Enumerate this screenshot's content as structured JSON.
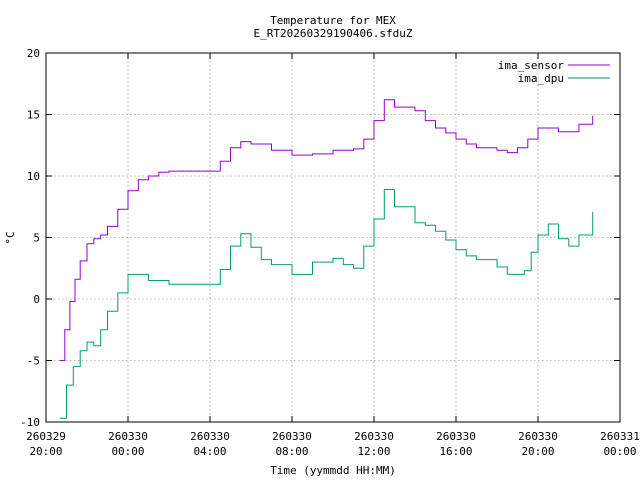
{
  "chart_data": {
    "type": "line",
    "title": "Temperature for MEX",
    "subtitle": "E_RT20260329190406.sfduZ",
    "xlabel": "Time (yymmdd HH:MM)",
    "ylabel": "°C",
    "ylim": [
      -10,
      20
    ],
    "yticks": [
      "-10",
      "-5",
      "0",
      "5",
      "10",
      "15",
      "20"
    ],
    "xlim": [
      "2026-03-29 20:00",
      "2026-03-31 00:00"
    ],
    "xticks": [
      {
        "date": "260329",
        "time": "20:00"
      },
      {
        "date": "260330",
        "time": "00:00"
      },
      {
        "date": "260330",
        "time": "04:00"
      },
      {
        "date": "260330",
        "time": "08:00"
      },
      {
        "date": "260330",
        "time": "12:00"
      },
      {
        "date": "260330",
        "time": "16:00"
      },
      {
        "date": "260330",
        "time": "20:00"
      },
      {
        "date": "260331",
        "time": "00:00"
      }
    ],
    "grid": true,
    "legend_position": "top-right",
    "series": [
      {
        "name": "ima_sensor",
        "color": "#9400d3",
        "x": [
          "2026-03-29 20:40",
          "2026-03-29 20:55",
          "2026-03-29 21:10",
          "2026-03-29 21:25",
          "2026-03-29 21:40",
          "2026-03-29 22:00",
          "2026-03-29 22:20",
          "2026-03-29 22:40",
          "2026-03-29 23:00",
          "2026-03-29 23:30",
          "2026-03-30 00:00",
          "2026-03-30 00:30",
          "2026-03-30 01:00",
          "2026-03-30 01:30",
          "2026-03-30 02:00",
          "2026-03-30 03:00",
          "2026-03-30 04:00",
          "2026-03-30 04:30",
          "2026-03-30 05:00",
          "2026-03-30 05:30",
          "2026-03-30 06:00",
          "2026-03-30 07:00",
          "2026-03-30 08:00",
          "2026-03-30 09:00",
          "2026-03-30 10:00",
          "2026-03-30 11:00",
          "2026-03-30 11:30",
          "2026-03-30 12:00",
          "2026-03-30 12:30",
          "2026-03-30 13:00",
          "2026-03-30 14:00",
          "2026-03-30 14:30",
          "2026-03-30 15:00",
          "2026-03-30 15:30",
          "2026-03-30 16:00",
          "2026-03-30 16:30",
          "2026-03-30 17:00",
          "2026-03-30 18:00",
          "2026-03-30 18:30",
          "2026-03-30 19:00",
          "2026-03-30 19:30",
          "2026-03-30 20:00",
          "2026-03-30 21:00",
          "2026-03-30 22:00",
          "2026-03-30 22:40"
        ],
        "y": [
          -5.0,
          -2.5,
          -0.2,
          1.6,
          3.1,
          4.5,
          4.9,
          5.2,
          5.9,
          7.3,
          8.8,
          9.7,
          10.0,
          10.3,
          10.4,
          10.4,
          10.4,
          11.2,
          12.3,
          12.8,
          12.6,
          12.1,
          11.7,
          11.8,
          12.1,
          12.2,
          13.0,
          14.5,
          16.2,
          15.6,
          15.3,
          14.5,
          13.9,
          13.5,
          13.0,
          12.6,
          12.3,
          12.1,
          11.9,
          12.3,
          13.0,
          13.9,
          13.6,
          14.2,
          14.9
        ]
      },
      {
        "name": "ima_dpu",
        "color": "#009e73",
        "x": [
          "2026-03-29 20:40",
          "2026-03-29 21:00",
          "2026-03-29 21:20",
          "2026-03-29 21:40",
          "2026-03-29 22:00",
          "2026-03-29 22:20",
          "2026-03-29 22:40",
          "2026-03-29 23:00",
          "2026-03-29 23:30",
          "2026-03-30 00:00",
          "2026-03-30 00:30",
          "2026-03-30 01:00",
          "2026-03-30 01:30",
          "2026-03-30 02:00",
          "2026-03-30 03:00",
          "2026-03-30 04:00",
          "2026-03-30 04:30",
          "2026-03-30 05:00",
          "2026-03-30 05:30",
          "2026-03-30 06:00",
          "2026-03-30 06:30",
          "2026-03-30 07:00",
          "2026-03-30 08:00",
          "2026-03-30 09:00",
          "2026-03-30 10:00",
          "2026-03-30 10:30",
          "2026-03-30 11:00",
          "2026-03-30 11:30",
          "2026-03-30 12:00",
          "2026-03-30 12:30",
          "2026-03-30 13:00",
          "2026-03-30 14:00",
          "2026-03-30 14:30",
          "2026-03-30 15:00",
          "2026-03-30 15:30",
          "2026-03-30 16:00",
          "2026-03-30 16:30",
          "2026-03-30 17:00",
          "2026-03-30 18:00",
          "2026-03-30 18:30",
          "2026-03-30 19:00",
          "2026-03-30 19:20",
          "2026-03-30 19:40",
          "2026-03-30 20:00",
          "2026-03-30 20:30",
          "2026-03-30 21:00",
          "2026-03-30 21:30",
          "2026-03-30 22:00",
          "2026-03-30 22:40"
        ],
        "y": [
          -9.7,
          -7.0,
          -5.5,
          -4.2,
          -3.5,
          -3.8,
          -2.5,
          -1.0,
          0.5,
          2.0,
          2.0,
          1.5,
          1.5,
          1.2,
          1.2,
          1.2,
          2.4,
          4.3,
          5.3,
          4.2,
          3.2,
          2.8,
          2.0,
          3.0,
          3.3,
          2.8,
          2.5,
          4.3,
          6.5,
          8.9,
          7.5,
          6.2,
          6.0,
          5.5,
          4.8,
          4.0,
          3.5,
          3.2,
          2.6,
          2.0,
          2.0,
          2.3,
          3.8,
          5.2,
          6.1,
          4.9,
          4.3,
          5.2,
          7.1
        ]
      }
    ]
  }
}
